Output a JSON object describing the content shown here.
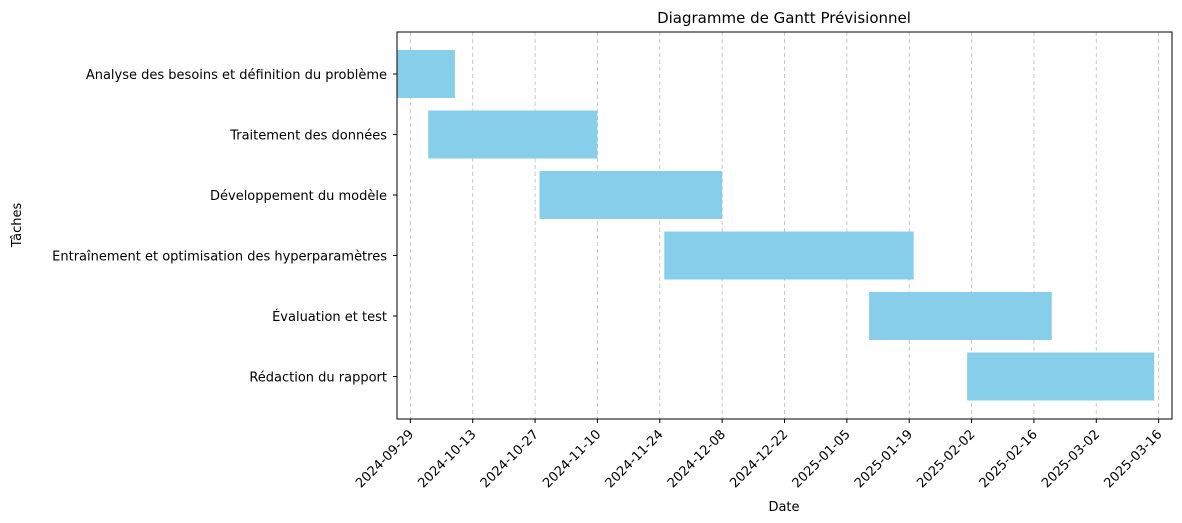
{
  "chart_data": {
    "type": "gantt",
    "title": "Diagramme de Gantt Prévisionnel",
    "xlabel": "Date",
    "ylabel": "Tâches",
    "x_axis_type": "date",
    "xlim": [
      "2024-09-26",
      "2025-03-19"
    ],
    "grid": {
      "x": true,
      "y": false,
      "style": "dashed"
    },
    "bar_color": "#87CEEB",
    "grid_color": "#c8c8c8",
    "x_ticks": [
      "2024-09-29",
      "2024-10-13",
      "2024-10-27",
      "2024-11-10",
      "2024-11-24",
      "2024-12-08",
      "2024-12-22",
      "2025-01-05",
      "2025-01-19",
      "2025-02-02",
      "2025-02-16",
      "2025-03-02",
      "2025-03-16"
    ],
    "tasks": [
      {
        "name": "Analyse des besoins et définition du problème",
        "start": "2024-09-26",
        "end": "2024-10-09"
      },
      {
        "name": "Traitement des données",
        "start": "2024-10-03",
        "end": "2024-11-10"
      },
      {
        "name": "Développement du modèle",
        "start": "2024-10-28",
        "end": "2024-12-08"
      },
      {
        "name": "Entraînement et optimisation des hyperparamètres",
        "start": "2024-11-25",
        "end": "2025-01-20"
      },
      {
        "name": "Évaluation et test",
        "start": "2025-01-10",
        "end": "2025-02-20"
      },
      {
        "name": "Rédaction du rapport",
        "start": "2025-02-01",
        "end": "2025-03-15"
      }
    ]
  }
}
